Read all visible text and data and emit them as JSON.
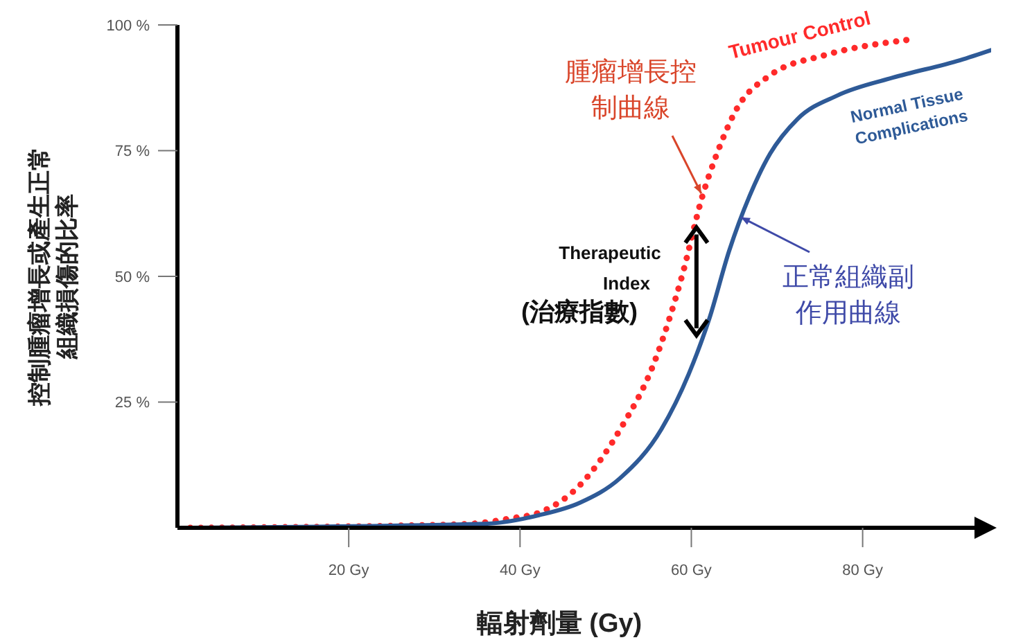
{
  "chart_data": {
    "type": "line",
    "xlabel": "輻射劑量 (Gy)",
    "ylabel": "控制腫瘤增長或產生正常組織損傷的比率",
    "xlim": [
      0,
      95
    ],
    "ylim": [
      0,
      100
    ],
    "xticks": [
      {
        "value": 20,
        "label": "20 Gy"
      },
      {
        "value": 40,
        "label": "40 Gy"
      },
      {
        "value": 60,
        "label": "60 Gy"
      },
      {
        "value": 80,
        "label": "80 Gy"
      }
    ],
    "yticks": [
      {
        "value": 25,
        "label": "25 %"
      },
      {
        "value": 50,
        "label": "50 %"
      },
      {
        "value": 75,
        "label": "75 %"
      },
      {
        "value": 100,
        "label": "100 %"
      }
    ],
    "grid": false,
    "series": [
      {
        "name": "Tumour Control",
        "color": "#ff2a2a",
        "line_style": "dotted",
        "x": [
          1.5,
          28,
          34.3,
          39,
          42.2,
          47,
          51.7,
          55.7,
          58.9,
          61.3,
          62.9,
          65.2,
          69.2,
          75.6,
          85.1
        ],
        "values": [
          0,
          0.5,
          0.8,
          1.9,
          3,
          8.5,
          19.6,
          33,
          50,
          66,
          74,
          83,
          90,
          94,
          97
        ]
      },
      {
        "name": "Normal Tissue Complications",
        "color": "#2e5a97",
        "line_style": "solid",
        "x": [
          1.5,
          35.9,
          42.2,
          47,
          51.7,
          56.5,
          59.7,
          62.1,
          64.4,
          66.8,
          69.2,
          72.4,
          77.1,
          83.5,
          91.4,
          95
        ],
        "values": [
          0,
          0.8,
          2.5,
          5,
          9.9,
          19.6,
          30.6,
          41.6,
          55,
          66,
          74.4,
          81.3,
          86,
          89.5,
          93,
          95
        ]
      }
    ],
    "annotations": [
      {
        "text": "腫瘤增長控制曲線",
        "x": 61.3,
        "y": 66
      },
      {
        "text": "正常組織副作用曲線",
        "x": 65.5,
        "y": 62
      },
      "Therapeutic Index (治療指數)"
    ]
  }
}
